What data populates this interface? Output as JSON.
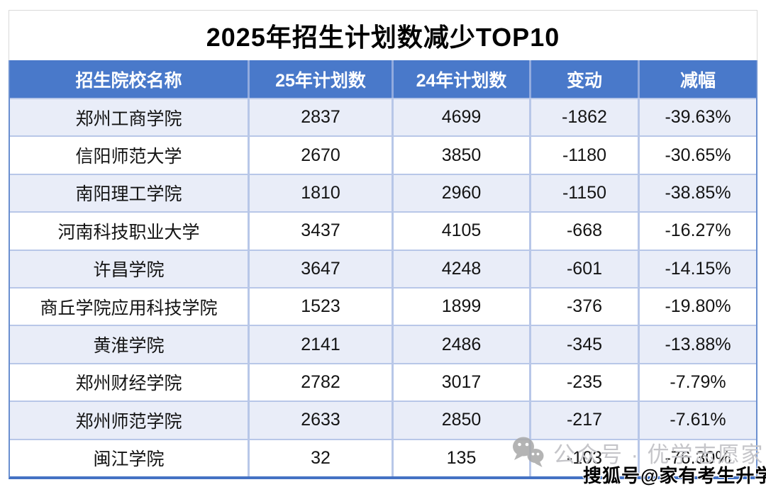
{
  "title": "2025年招生计划数减少TOP10",
  "chart_data": {
    "type": "table",
    "title": "2025年招生计划数减少TOP10",
    "columns": [
      "招生院校名称",
      "25年计划数",
      "24年计划数",
      "变动",
      "减幅"
    ],
    "rows": [
      [
        "郑州工商学院",
        2837,
        4699,
        -1862,
        "-39.63%"
      ],
      [
        "信阳师范大学",
        2670,
        3850,
        -1180,
        "-30.65%"
      ],
      [
        "南阳理工学院",
        1810,
        2960,
        -1150,
        "-38.85%"
      ],
      [
        "河南科技职业大学",
        3437,
        4105,
        -668,
        "-16.27%"
      ],
      [
        "许昌学院",
        3647,
        4248,
        -601,
        "-14.15%"
      ],
      [
        "商丘学院应用科技学院",
        1523,
        1899,
        -376,
        "-19.80%"
      ],
      [
        "黄淮学院",
        2141,
        2486,
        -345,
        "-13.88%"
      ],
      [
        "郑州财经学院",
        2782,
        3017,
        -235,
        "-7.79%"
      ],
      [
        "郑州师范学院",
        2633,
        2850,
        -217,
        "-7.61%"
      ],
      [
        "闽江学院",
        32,
        135,
        -103,
        "-76.30%"
      ]
    ]
  },
  "watermarks": {
    "wechat_label": "公众号 · 优学志愿家",
    "sohu_label": "搜狐号@家有考生升学帮"
  },
  "colors": {
    "header_bg": "#4979ca",
    "header_text": "#ffffff",
    "row_alt_bg": "#e9edf8",
    "border_light": "#b8c7e8",
    "border_strong": "#4472c4",
    "watermark_gray": "#c5c5c9"
  }
}
